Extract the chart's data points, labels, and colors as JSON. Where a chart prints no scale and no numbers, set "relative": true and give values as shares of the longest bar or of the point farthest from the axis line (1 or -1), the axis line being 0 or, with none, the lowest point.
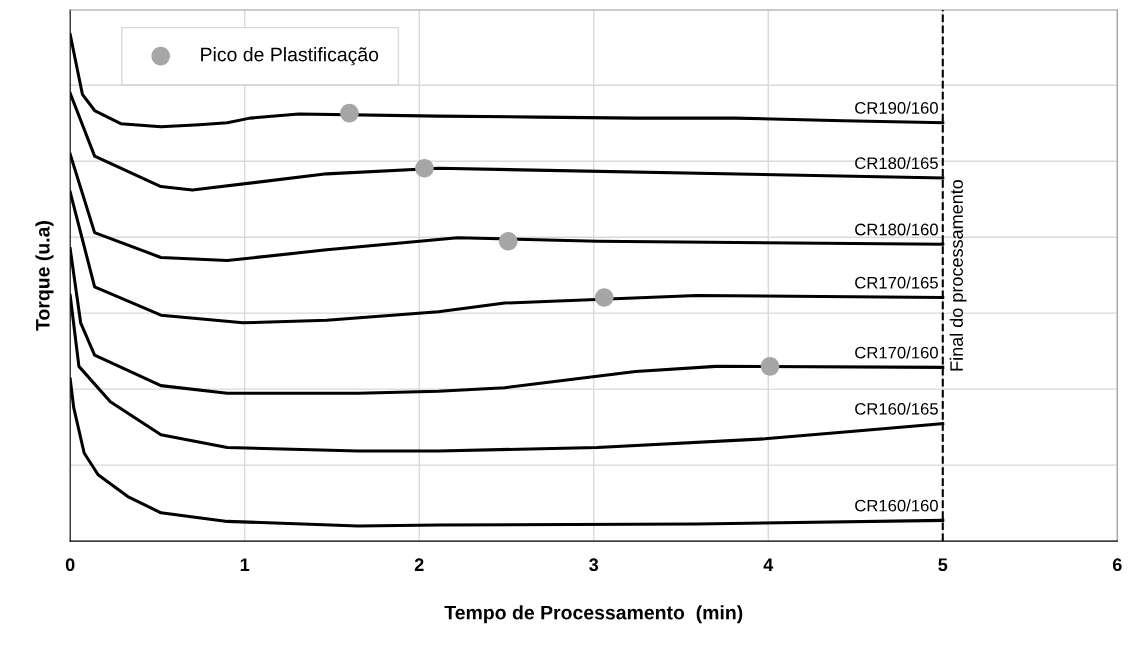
{
  "chart_data": {
    "type": "line",
    "relative": true,
    "xlabel": "Tempo de Processamento  (min)",
    "ylabel": "Torque (u.a)",
    "xlim": [
      0,
      6
    ],
    "xticks": [
      0,
      1,
      2,
      3,
      4,
      5,
      6
    ],
    "grid": true,
    "legend": "top left",
    "marker": "none",
    "line_style": "solid",
    "ref_lines": [
      {
        "axis": "x",
        "value": 5,
        "label": "Final do processamento",
        "color": "#000000",
        "line_style": "dashed"
      }
    ],
    "series": [
      {
        "name": "CR190/160",
        "color": "#000000",
        "x": [
          0,
          0.07,
          0.14,
          0.18,
          0.29,
          0.52,
          0.74,
          0.9,
          1.03,
          1.31,
          2.11,
          2.68,
          3.24,
          3.81,
          4.43,
          5.0
        ],
        "values": [
          1.0,
          0.882,
          0.85,
          0.843,
          0.824,
          0.818,
          0.822,
          0.826,
          0.835,
          0.843,
          0.839,
          0.837,
          0.835,
          0.835,
          0.83,
          0.826
        ]
      },
      {
        "name": "CR180/165",
        "color": "#000000",
        "x": [
          0,
          0.14,
          0.52,
          0.7,
          1.47,
          2.11,
          5.0
        ],
        "values": [
          0.884,
          0.76,
          0.7,
          0.693,
          0.725,
          0.736,
          0.717
        ]
      },
      {
        "name": "CR180/160",
        "color": "#000000",
        "x": [
          0,
          0.14,
          0.52,
          0.9,
          1.47,
          2.22,
          3.02,
          5.0
        ],
        "values": [
          0.764,
          0.609,
          0.56,
          0.554,
          0.575,
          0.599,
          0.592,
          0.586
        ]
      },
      {
        "name": "CR170/165",
        "color": "#000000",
        "x": [
          0,
          0.14,
          0.52,
          0.99,
          1.47,
          2.11,
          2.49,
          3.59,
          5.0
        ],
        "values": [
          0.689,
          0.502,
          0.446,
          0.431,
          0.436,
          0.453,
          0.47,
          0.485,
          0.481
        ]
      },
      {
        "name": "CR170/160",
        "color": "#000000",
        "x": [
          0,
          0.06,
          0.14,
          0.52,
          0.9,
          1.65,
          2.11,
          2.49,
          3.24,
          3.7,
          5.0
        ],
        "values": [
          0.577,
          0.431,
          0.367,
          0.307,
          0.292,
          0.292,
          0.296,
          0.303,
          0.335,
          0.345,
          0.343
        ]
      },
      {
        "name": "CR160/165",
        "color": "#000000",
        "x": [
          0,
          0.05,
          0.23,
          0.52,
          0.9,
          1.65,
          2.11,
          3.02,
          3.98,
          4.49,
          5.0
        ],
        "values": [
          0.485,
          0.345,
          0.275,
          0.21,
          0.185,
          0.178,
          0.178,
          0.185,
          0.202,
          0.217,
          0.232
        ]
      },
      {
        "name": "CR160/160",
        "color": "#000000",
        "x": [
          0,
          0.02,
          0.08,
          0.16,
          0.33,
          0.52,
          0.9,
          1.65,
          2.11,
          3.59,
          5.0
        ],
        "values": [
          0.32,
          0.264,
          0.174,
          0.131,
          0.088,
          0.056,
          0.039,
          0.03,
          0.032,
          0.034,
          0.041
        ]
      },
      {
        "name": "Pico de Plastificação",
        "type": "scatter",
        "marker": "circle",
        "color": "#a6a6a6",
        "x": [
          1.6,
          2.03,
          2.51,
          3.06,
          4.01
        ],
        "values": [
          0.845,
          0.736,
          0.592,
          0.481,
          0.345
        ]
      }
    ]
  }
}
